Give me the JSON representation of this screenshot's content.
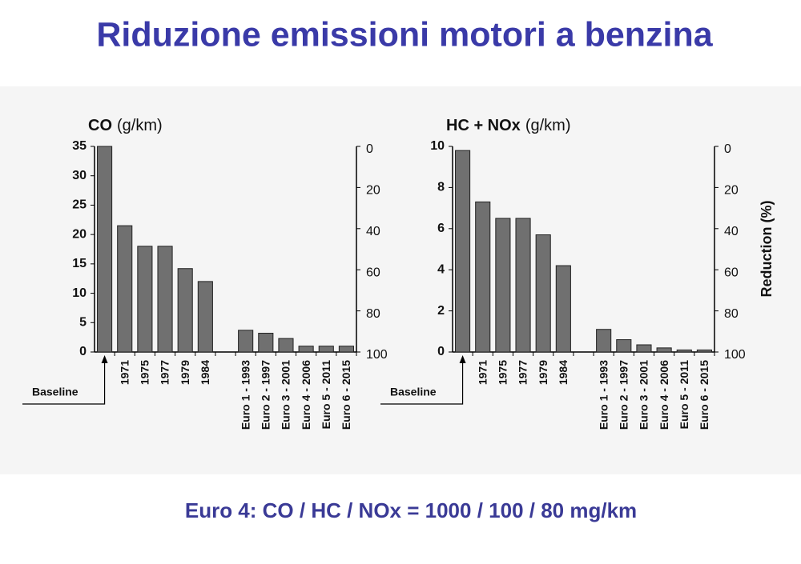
{
  "header": {
    "title": "Riduzione emissioni motori a benzina"
  },
  "footer": {
    "text": "Euro 4: CO / HC / NOx = 1000 / 100 / 80 mg/km"
  },
  "chart_data": [
    {
      "type": "bar",
      "title": "CO",
      "title_unit": "(g/km)",
      "annotation": "Baseline",
      "categories": [
        null,
        "1971",
        "1975",
        "1977",
        "1979",
        "1984",
        null,
        "Euro 1 - 1993",
        "Euro 2 - 1997",
        "Euro 3 - 2001",
        "Euro 4 - 2006",
        "Euro 5 - 2011",
        "Euro 6 - 2015"
      ],
      "values": [
        35,
        21.5,
        18,
        18,
        14.2,
        12,
        null,
        3.7,
        3.2,
        2.3,
        1,
        1,
        1
      ],
      "color": "#707070",
      "ylim": [
        0,
        35
      ],
      "yticks": [
        0,
        5,
        10,
        15,
        20,
        25,
        30,
        35
      ],
      "y2lim": [
        100,
        0
      ],
      "y2ticks": [
        0,
        20,
        40,
        60,
        80,
        100
      ]
    },
    {
      "type": "bar",
      "title": "HC + NOx",
      "title_unit": "(g/km)",
      "annotation": "Baseline",
      "y2label": "Reduction (%)",
      "categories": [
        null,
        "1971",
        "1975",
        "1977",
        "1979",
        "1984",
        null,
        "Euro 1 - 1993",
        "Euro 2 - 1997",
        "Euro 3 - 2001",
        "Euro 4 - 2006",
        "Euro 5 - 2011",
        "Euro 6 - 2015"
      ],
      "values": [
        9.8,
        7.3,
        6.5,
        6.5,
        5.7,
        4.2,
        null,
        1.1,
        0.6,
        0.35,
        0.2,
        0.1,
        0.1
      ],
      "color": "#707070",
      "ylim": [
        0,
        10
      ],
      "yticks": [
        0,
        2,
        4,
        6,
        8,
        10
      ],
      "y2lim": [
        100,
        0
      ],
      "y2ticks": [
        0,
        20,
        40,
        60,
        80,
        100
      ]
    }
  ]
}
